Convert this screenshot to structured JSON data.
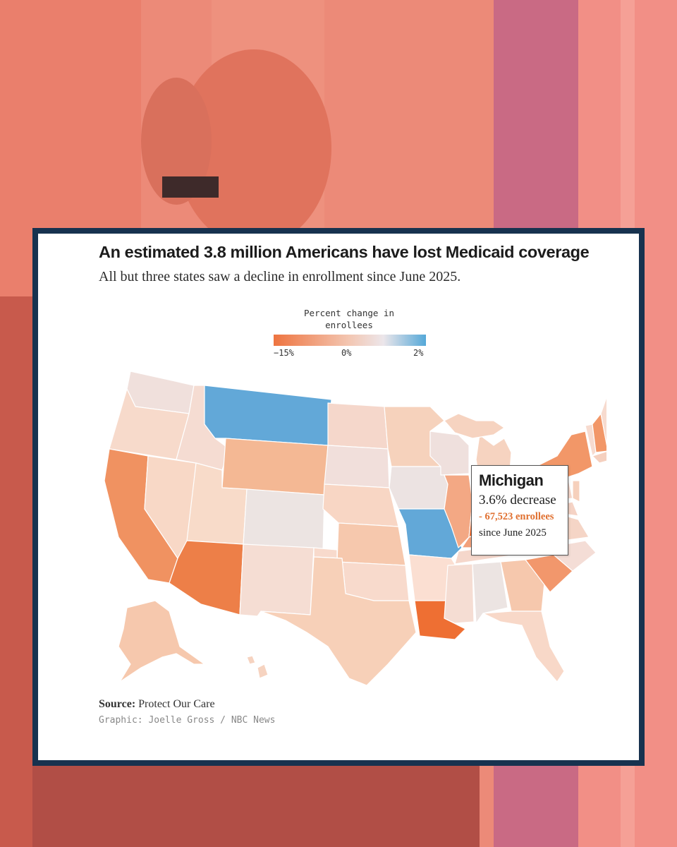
{
  "header": {
    "title": "An estimated 3.8 million Americans have lost Medicaid coverage",
    "subtitle": "All but three states saw a decline in enrollment since June 2025."
  },
  "legend": {
    "title": "Percent change in enrollees",
    "min_label": "−15%",
    "mid_label": "0%",
    "max_label": "2%",
    "colors": {
      "decline": "#ee7440",
      "neutral": "#ede6e6",
      "increase": "#55a8d8"
    }
  },
  "map": {
    "region": "United States",
    "highlighted_state": "Michigan"
  },
  "tooltip": {
    "state": "Michigan",
    "change": "3.6% decrease",
    "enrollees": "- 67,523 enrollees",
    "since": "since June 2025",
    "accent": "#e07030"
  },
  "footer": {
    "source_label": "Source:",
    "source_value": "Protect Our Care",
    "credit": "Graphic: Joelle Gross / NBC News"
  },
  "colors": {
    "card_border": "#17324f",
    "background_tint": "#e98876"
  }
}
